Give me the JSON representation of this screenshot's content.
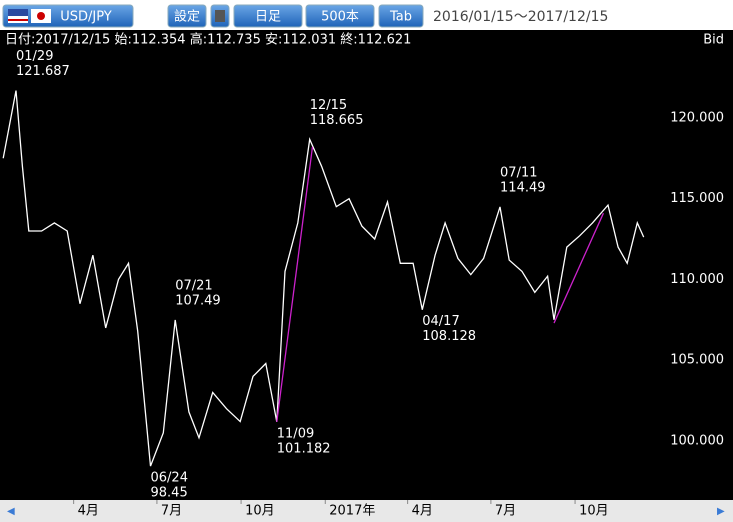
{
  "toolbar": {
    "symbol": "USD/JPY",
    "settings": "設定",
    "timeframe": "日足",
    "bars": "500本",
    "tab": "Tab",
    "range": "2016/01/15～2017/12/15"
  },
  "info": {
    "text": "日付:2017/12/15 始:112.354 高:112.735 安:112.031 終:112.621",
    "side": "Bid"
  },
  "chart_data": {
    "type": "line",
    "x": [
      "2016/01/15",
      "2016/01/29",
      "2016/02/05",
      "2016/02/12",
      "2016/02/26",
      "2016/03/11",
      "2016/03/25",
      "2016/04/08",
      "2016/04/22",
      "2016/05/06",
      "2016/05/20",
      "2016/05/31",
      "2016/06/10",
      "2016/06/24",
      "2016/07/08",
      "2016/07/21",
      "2016/08/05",
      "2016/08/16",
      "2016/08/31",
      "2016/09/15",
      "2016/09/30",
      "2016/10/14",
      "2016/10/28",
      "2016/11/09",
      "2016/11/18",
      "2016/12/02",
      "2016/12/15",
      "2016/12/28",
      "2017/01/13",
      "2017/01/27",
      "2017/02/10",
      "2017/02/24",
      "2017/03/10",
      "2017/03/24",
      "2017/04/07",
      "2017/04/17",
      "2017/05/01",
      "2017/05/12",
      "2017/05/26",
      "2017/06/09",
      "2017/06/23",
      "2017/07/11",
      "2017/07/21",
      "2017/08/04",
      "2017/08/18",
      "2017/09/01",
      "2017/09/08",
      "2017/09/22",
      "2017/10/06",
      "2017/10/20",
      "2017/11/06",
      "2017/11/17",
      "2017/11/27",
      "2017/12/08",
      "2017/12/15"
    ],
    "series": [
      {
        "color": "#ffffff",
        "values": [
          117.5,
          121.687,
          117,
          113,
          113,
          113.5,
          113,
          108.5,
          111.5,
          107,
          110,
          111,
          106.8,
          98.45,
          100.5,
          107.49,
          101.8,
          100.2,
          103,
          102,
          101.2,
          104,
          104.8,
          101.182,
          110.5,
          113.5,
          118.665,
          117,
          114.5,
          115,
          113.3,
          112.5,
          114.8,
          111,
          111,
          108.128,
          111.5,
          113.5,
          111.3,
          110.3,
          111.3,
          114.49,
          111.2,
          110.5,
          109.2,
          110.2,
          107.5,
          112,
          112.7,
          113.5,
          114.6,
          112,
          111,
          113.5,
          112.621
        ]
      }
    ],
    "annotations": [
      {
        "x": "2016/01/29",
        "label": "01/29",
        "value": 121.687,
        "place": "above"
      },
      {
        "x": "2016/06/24",
        "label": "06/24",
        "value": 98.45,
        "place": "below"
      },
      {
        "x": "2016/07/21",
        "label": "07/21",
        "value": 107.49,
        "place": "above"
      },
      {
        "x": "2016/11/09",
        "label": "11/09",
        "value": 101.182,
        "place": "below"
      },
      {
        "x": "2016/12/15",
        "label": "12/15",
        "value": 118.665,
        "place": "above"
      },
      {
        "x": "2017/04/17",
        "label": "04/17",
        "value": 108.128,
        "place": "below"
      },
      {
        "x": "2017/07/11",
        "label": "07/11",
        "value": 114.49,
        "place": "above"
      }
    ],
    "trendlines": [
      {
        "color": "#cc22cc",
        "x": [
          "2016/11/09",
          "2016/12/18"
        ],
        "values": [
          101.182,
          118.2
        ]
      },
      {
        "color": "#cc22cc",
        "x": [
          "2017/09/08",
          "2017/11/01"
        ],
        "values": [
          107.3,
          114.1
        ]
      }
    ],
    "ylim": [
      96.35,
      124.2
    ],
    "yticks": [
      {
        "value": 100,
        "label": "100.000"
      },
      {
        "value": 105,
        "label": "105.000"
      },
      {
        "value": 110,
        "label": "110.000"
      },
      {
        "value": 115,
        "label": "115.000"
      },
      {
        "value": 120,
        "label": "120.000"
      }
    ],
    "xticks": [
      {
        "value": "2016/04/01",
        "label": "4月"
      },
      {
        "value": "2016/07/01",
        "label": "7月"
      },
      {
        "value": "2016/10/01",
        "label": "10月"
      },
      {
        "value": "2017/01/01",
        "label": "2017年"
      },
      {
        "value": "2017/04/01",
        "label": "4月"
      },
      {
        "value": "2017/07/01",
        "label": "7月"
      },
      {
        "value": "2017/10/01",
        "label": "10月"
      }
    ]
  }
}
